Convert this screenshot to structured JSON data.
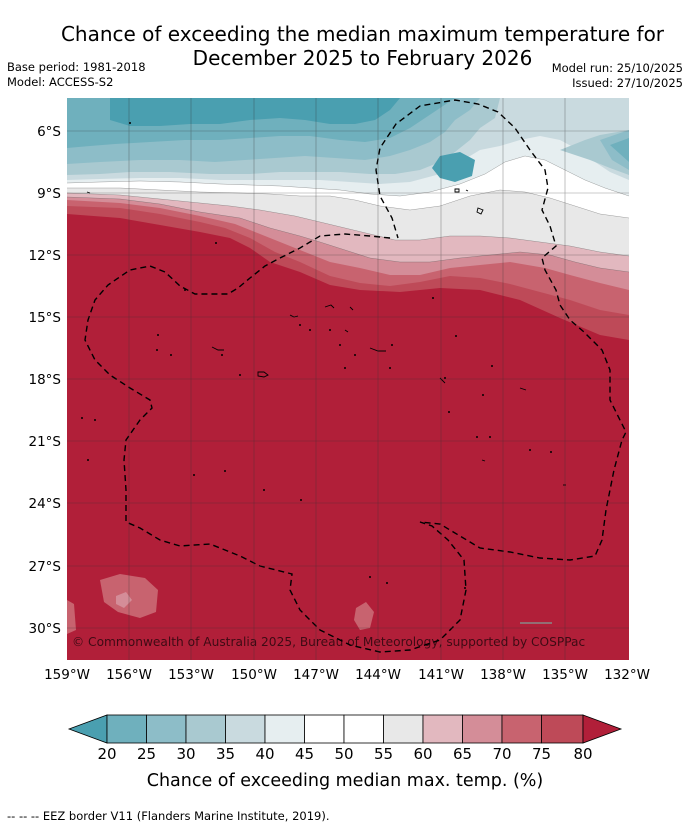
{
  "title": {
    "line1": "Chance of exceeding the median maximum temperature for",
    "line2": "December 2025 to February 2026"
  },
  "meta": {
    "base_period": "Base period: 1981-2018",
    "model": "Model: ACCESS-S2",
    "model_run": "Model run: 25/10/2025",
    "issued": "Issued: 27/10/2025"
  },
  "map": {
    "lat_labels": [
      "6°S",
      "9°S",
      "12°S",
      "15°S",
      "18°S",
      "21°S",
      "24°S",
      "27°S",
      "30°S"
    ],
    "lon_labels": [
      "159°W",
      "156°W",
      "153°W",
      "150°W",
      "147°W",
      "144°W",
      "141°W",
      "138°W",
      "135°W",
      "132°W"
    ],
    "copyright": "© Commonwealth of Australia 2025, Bureau of Meteorology, supported by COSPPac",
    "colors": {
      "below_20": "#4a9fb0",
      "20_25": "#6fb0bd",
      "25_30": "#8dbdc8",
      "30_35": "#a9c9d0",
      "35_40": "#c9dadf",
      "40_45": "#e6eef0",
      "45_55": "#ffffff",
      "55_60": "#e8e8e8",
      "60_65": "#e2b8bf",
      "65_70": "#d48d98",
      "70_75": "#c8636f",
      "75_80": "#be4a58",
      "above_80": "#b11f39"
    }
  },
  "colorbar": {
    "ticks": [
      "20",
      "25",
      "30",
      "35",
      "40",
      "45",
      "50",
      "55",
      "60",
      "65",
      "70",
      "75",
      "80"
    ],
    "title": "Chance of exceeding median max. temp. (%)"
  },
  "footer": "--  --  -- EEZ border V11 (Flanders Marine Institute, 2019)."
}
